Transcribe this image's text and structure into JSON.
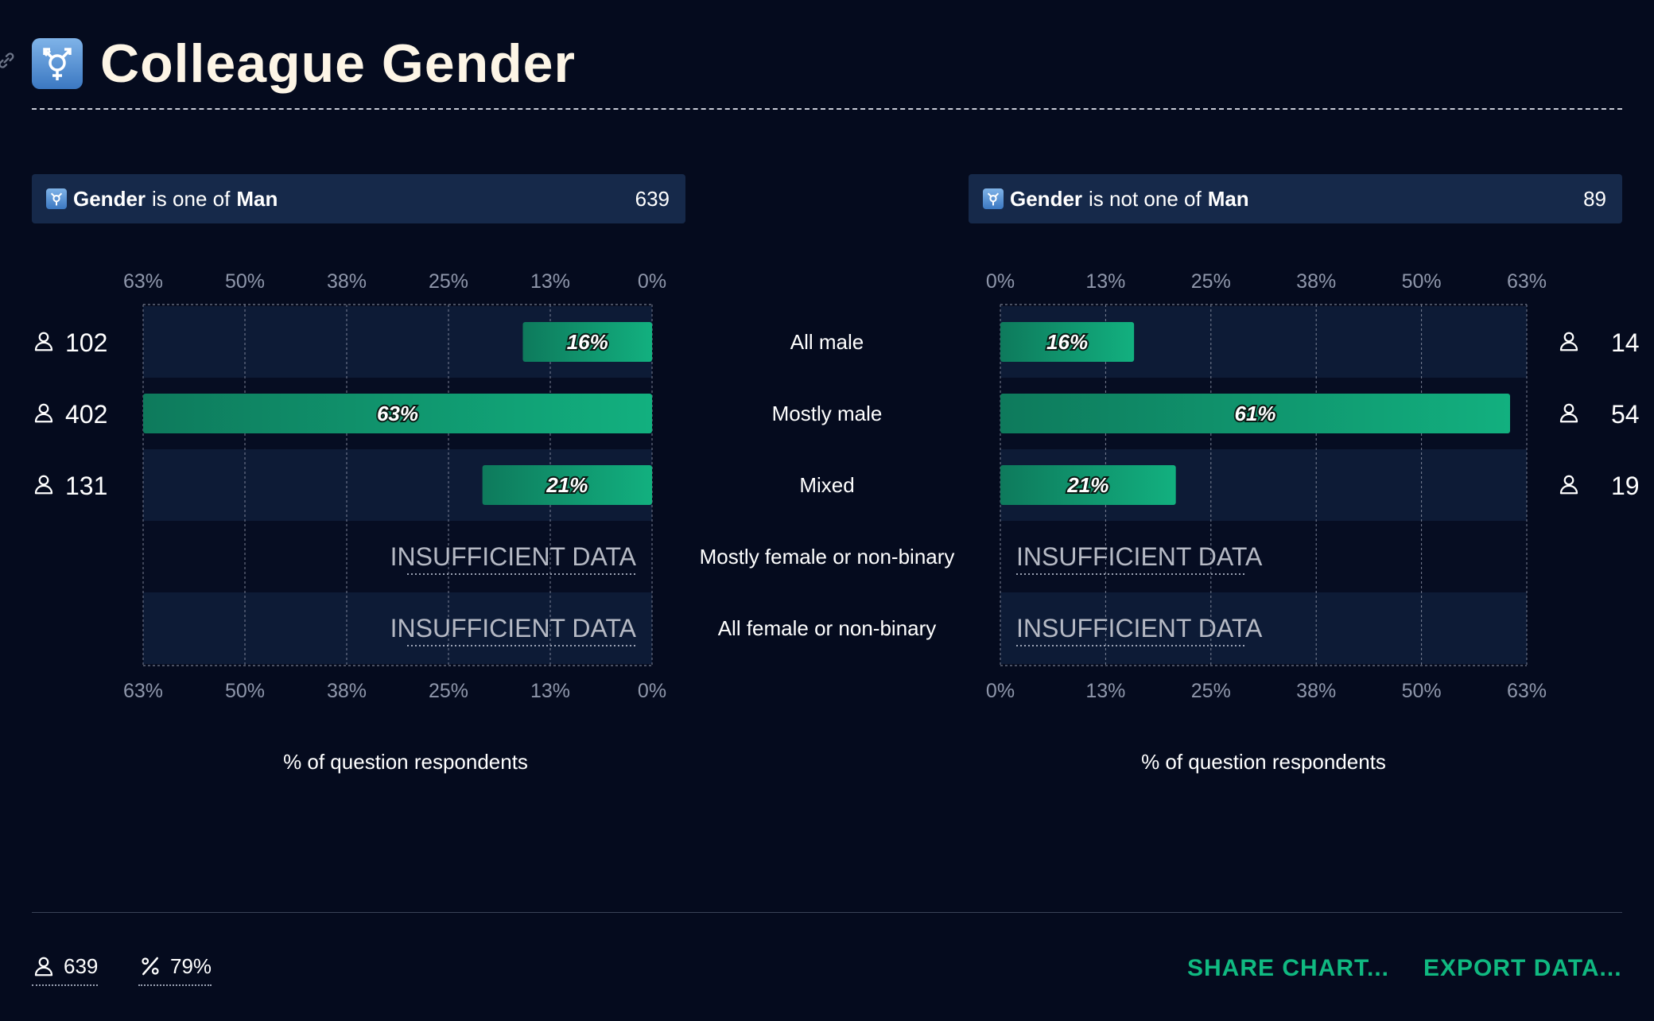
{
  "header": {
    "title": "Colleague Gender",
    "title_icon": "transgender-symbol-icon",
    "link_icon": "link-icon"
  },
  "filters": {
    "left": {
      "field": "Gender",
      "operator": "is one of",
      "value": "Man",
      "count": "639"
    },
    "right": {
      "field": "Gender",
      "operator": "is not one of",
      "value": "Man",
      "count": "89"
    }
  },
  "chart_data": [
    {
      "type": "bar",
      "orientation": "horizontal",
      "direction": "right-to-left",
      "categories": [
        "All male",
        "Mostly male",
        "Mixed",
        "Mostly female or non-binary",
        "All female or non-binary"
      ],
      "values": [
        16,
        63,
        21,
        null,
        null
      ],
      "value_labels": [
        "16%",
        "63%",
        "21%",
        "INSUFFICIENT DATA",
        "INSUFFICIENT DATA"
      ],
      "respondent_counts": [
        "102",
        "402",
        "131",
        "",
        ""
      ],
      "xlim": [
        0,
        63
      ],
      "ticks": [
        "63%",
        "50%",
        "38%",
        "25%",
        "13%",
        "0%"
      ],
      "xlabel": "% of question respondents",
      "grid": true,
      "bar_color": "#10b981"
    },
    {
      "type": "bar",
      "orientation": "horizontal",
      "direction": "left-to-right",
      "categories": [
        "All male",
        "Mostly male",
        "Mixed",
        "Mostly female or non-binary",
        "All female or non-binary"
      ],
      "values": [
        16,
        61,
        21,
        null,
        null
      ],
      "value_labels": [
        "16%",
        "61%",
        "21%",
        "INSUFFICIENT DATA",
        "INSUFFICIENT DATA"
      ],
      "respondent_counts": [
        "14",
        "54",
        "19",
        "",
        ""
      ],
      "xlim": [
        0,
        63
      ],
      "ticks": [
        "0%",
        "13%",
        "25%",
        "38%",
        "50%",
        "63%"
      ],
      "xlabel": "% of question respondents",
      "grid": true,
      "bar_color": "#10b981"
    }
  ],
  "footer": {
    "respondents": "639",
    "percent": "79%",
    "share_label": "SHARE CHART...",
    "export_label": "EXPORT DATA..."
  }
}
